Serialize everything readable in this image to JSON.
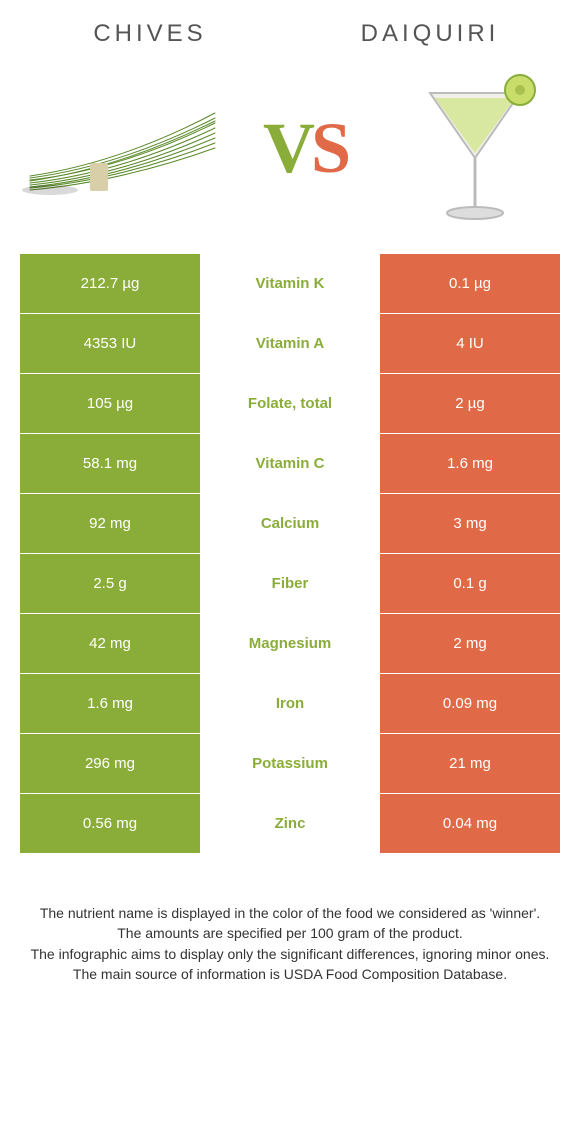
{
  "colors": {
    "left": "#8aad3a",
    "right": "#e06a47",
    "bg": "#ffffff",
    "title": "#555555",
    "foot": "#333333"
  },
  "titles": {
    "left": "CHIVES",
    "right": "DAIQUIRI"
  },
  "vs": {
    "v": "V",
    "s": "S"
  },
  "rows": [
    {
      "left": "212.7 µg",
      "label": "Vitamin K",
      "winner": "left",
      "right": "0.1 µg"
    },
    {
      "left": "4353 IU",
      "label": "Vitamin A",
      "winner": "left",
      "right": "4 IU"
    },
    {
      "left": "105 µg",
      "label": "Folate, total",
      "winner": "left",
      "right": "2 µg"
    },
    {
      "left": "58.1 mg",
      "label": "Vitamin C",
      "winner": "left",
      "right": "1.6 mg"
    },
    {
      "left": "92 mg",
      "label": "Calcium",
      "winner": "left",
      "right": "3 mg"
    },
    {
      "left": "2.5 g",
      "label": "Fiber",
      "winner": "left",
      "right": "0.1 g"
    },
    {
      "left": "42 mg",
      "label": "Magnesium",
      "winner": "left",
      "right": "2 mg"
    },
    {
      "left": "1.6 mg",
      "label": "Iron",
      "winner": "left",
      "right": "0.09 mg"
    },
    {
      "left": "296 mg",
      "label": "Potassium",
      "winner": "left",
      "right": "21 mg"
    },
    {
      "left": "0.56 mg",
      "label": "Zinc",
      "winner": "left",
      "right": "0.04 mg"
    }
  ],
  "footnotes": [
    "The nutrient name is displayed in the color of the food we considered as 'winner'.",
    "The amounts are specified per 100 gram of the product.",
    "The infographic aims to display only the significant differences, ignoring minor ones.",
    "The main source of information is USDA Food Composition Database."
  ]
}
